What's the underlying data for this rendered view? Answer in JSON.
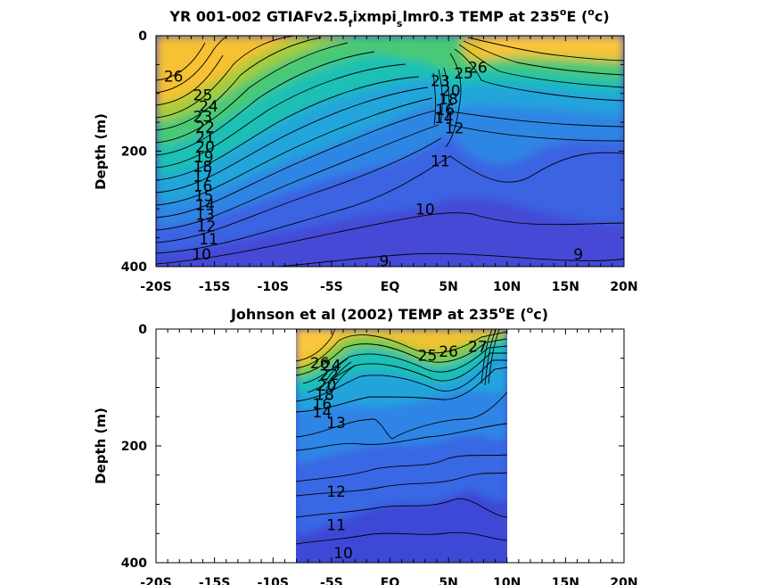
{
  "chart_data": [
    {
      "type": "contour",
      "title_parts": {
        "main": "YR 001-002 GTIAFv2.5",
        "sub1": "f",
        "mid": "ixmpi",
        "sub2": "s",
        "tail": "lmr0.3 TEMP at 235",
        "deg": "o",
        "unit_pre": "E (",
        "unit_sup": "o",
        "unit_post": "c)"
      },
      "ylabel": "Depth (m)",
      "ylim": [
        0,
        400
      ],
      "xlim": [
        -20,
        20
      ],
      "xticks": [
        "-20S",
        "-15S",
        "-10S",
        "-5S",
        "EQ",
        "5N",
        "10N",
        "15N",
        "20N"
      ],
      "yticks": [
        "0",
        "200",
        "400"
      ],
      "data_extent": [
        -20,
        20
      ],
      "colorscale": [
        "#3e36c9",
        "#2a79e6",
        "#1faad6",
        "#2cc38c",
        "#92cc3d",
        "#f0c130",
        "#f9c53a"
      ],
      "contour_labels": [
        {
          "text": "26",
          "lat": -18.5,
          "depth": 70
        },
        {
          "text": "25",
          "lat": -16.0,
          "depth": 103
        },
        {
          "text": "24",
          "lat": -15.5,
          "depth": 122
        },
        {
          "text": "23",
          "lat": -16.0,
          "depth": 140
        },
        {
          "text": "22",
          "lat": -15.8,
          "depth": 158
        },
        {
          "text": "21",
          "lat": -15.8,
          "depth": 176
        },
        {
          "text": "20",
          "lat": -15.8,
          "depth": 192
        },
        {
          "text": "19",
          "lat": -15.9,
          "depth": 210
        },
        {
          "text": "18",
          "lat": -16.0,
          "depth": 226
        },
        {
          "text": "17",
          "lat": -16.0,
          "depth": 243
        },
        {
          "text": "16",
          "lat": -16.0,
          "depth": 260
        },
        {
          "text": "15",
          "lat": -15.9,
          "depth": 277
        },
        {
          "text": "14",
          "lat": -15.8,
          "depth": 293
        },
        {
          "text": "13",
          "lat": -15.8,
          "depth": 310
        },
        {
          "text": "12",
          "lat": -15.7,
          "depth": 330
        },
        {
          "text": "11",
          "lat": -15.5,
          "depth": 352
        },
        {
          "text": "10",
          "lat": -16.1,
          "depth": 378
        },
        {
          "text": "9",
          "lat": -0.5,
          "depth": 390
        },
        {
          "text": "9",
          "lat": 16.1,
          "depth": 378
        },
        {
          "text": "10",
          "lat": 3.0,
          "depth": 300
        },
        {
          "text": "11",
          "lat": 4.3,
          "depth": 217
        },
        {
          "text": "12",
          "lat": 5.5,
          "depth": 160
        },
        {
          "text": "26",
          "lat": 7.5,
          "depth": 55
        },
        {
          "text": "25",
          "lat": 6.3,
          "depth": 65
        },
        {
          "text": "23",
          "lat": 4.3,
          "depth": 78
        },
        {
          "text": "20",
          "lat": 5.2,
          "depth": 95
        },
        {
          "text": "18",
          "lat": 5.0,
          "depth": 110
        },
        {
          "text": "16",
          "lat": 4.7,
          "depth": 128
        },
        {
          "text": "14",
          "lat": 4.6,
          "depth": 142
        }
      ]
    },
    {
      "type": "contour",
      "title_parts": {
        "main": "Johnson et al (2002) TEMP at 235",
        "deg": "o",
        "unit_pre": "E (",
        "unit_sup": "o",
        "unit_post": "c)"
      },
      "ylabel": "Depth (m)",
      "ylim": [
        0,
        400
      ],
      "xlim": [
        -20,
        20
      ],
      "xticks": [
        "-20S",
        "-15S",
        "-10S",
        "-5S",
        "EQ",
        "5N",
        "10N",
        "15N",
        "20N"
      ],
      "yticks": [
        "0",
        "200",
        "400"
      ],
      "data_extent": [
        -8,
        10
      ],
      "colorscale": [
        "#3e36c9",
        "#2a79e6",
        "#1faad6",
        "#2cc38c",
        "#92cc3d",
        "#f0c130",
        "#f9c53a"
      ],
      "contour_labels": [
        {
          "text": "26",
          "lat": -6.0,
          "depth": 58
        },
        {
          "text": "24",
          "lat": -5.0,
          "depth": 62
        },
        {
          "text": "22",
          "lat": -5.2,
          "depth": 78
        },
        {
          "text": "20",
          "lat": -5.4,
          "depth": 96
        },
        {
          "text": "18",
          "lat": -5.6,
          "depth": 112
        },
        {
          "text": "16",
          "lat": -5.8,
          "depth": 128
        },
        {
          "text": "14",
          "lat": -5.8,
          "depth": 142
        },
        {
          "text": "13",
          "lat": -4.6,
          "depth": 160
        },
        {
          "text": "12",
          "lat": -4.6,
          "depth": 278
        },
        {
          "text": "11",
          "lat": -4.6,
          "depth": 335
        },
        {
          "text": "10",
          "lat": -4.0,
          "depth": 383
        },
        {
          "text": "25",
          "lat": 3.2,
          "depth": 45
        },
        {
          "text": "26",
          "lat": 5.0,
          "depth": 38
        },
        {
          "text": "27",
          "lat": 7.5,
          "depth": 30
        }
      ]
    }
  ]
}
